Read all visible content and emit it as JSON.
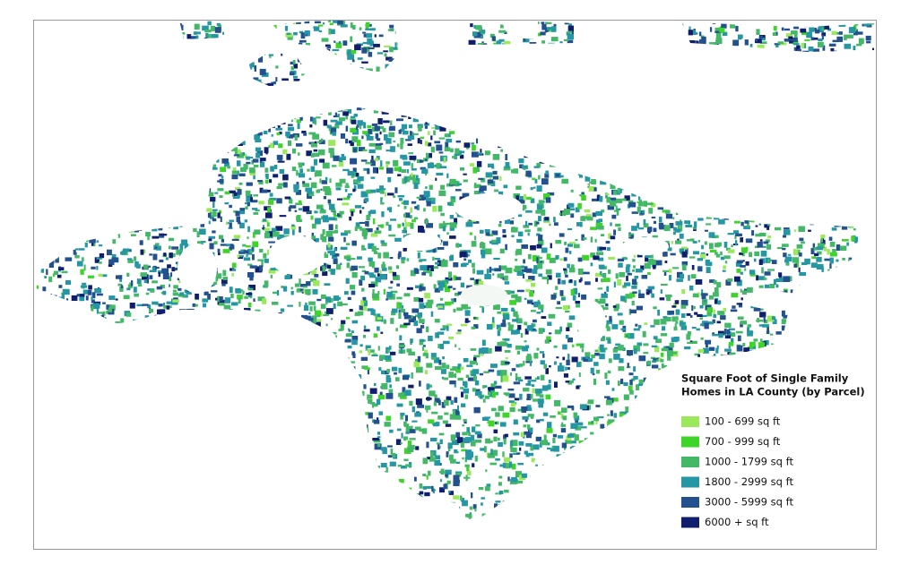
{
  "legend": {
    "title_lines": [
      "Square Foot of Single Family",
      "Homes in LA County (by Parcel)"
    ],
    "items": [
      {
        "label": "100 - 699 sq ft",
        "color": "#9be85a"
      },
      {
        "label": "700 - 999 sq ft",
        "color": "#3fd42a"
      },
      {
        "label": "1000 - 1799 sq ft",
        "color": "#43b866"
      },
      {
        "label": "1800 - 2999 sq ft",
        "color": "#2496a4"
      },
      {
        "label": "3000 - 5999 sq ft",
        "color": "#23518f"
      },
      {
        "label": "6000 + sq ft",
        "color": "#0f1f6e"
      }
    ]
  }
}
